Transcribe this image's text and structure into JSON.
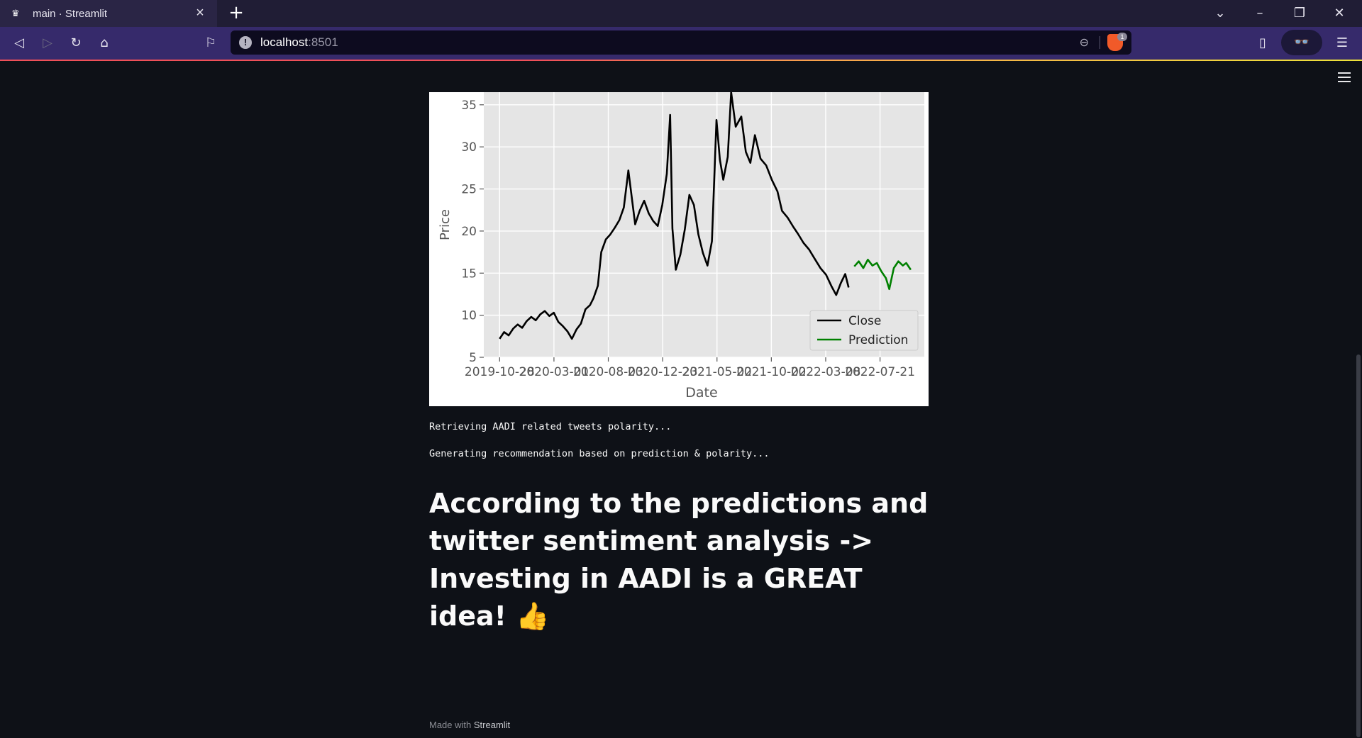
{
  "browser": {
    "tab_title": "main · Streamlit",
    "tab_icon": "streamlit-crown-icon",
    "url_host": "localhost",
    "url_port": ":8501",
    "shields_badge": "1"
  },
  "content": {
    "log_lines": [
      "Retrieving AADI related tweets polarity...",
      "Generating recommendation based on prediction & polarity..."
    ],
    "headline": "According to the predictions and twitter sentiment analysis -> Investing in AADI is a GREAT idea!",
    "headline_emoji": "👍",
    "footer_prefix": "Made with ",
    "footer_brand": "Streamlit"
  },
  "chart_data": {
    "type": "line",
    "xlabel": "Date",
    "ylabel": "Price",
    "ylim": [
      5,
      36.5
    ],
    "yticks": [
      5,
      10,
      15,
      20,
      25,
      30,
      35
    ],
    "xtick_labels": [
      "2019-10-28",
      "2020-03-01",
      "2020-08-03",
      "2020-12-23",
      "2021-05-02",
      "2021-10-02",
      "2022-03-08",
      "2022-07-21"
    ],
    "grid": true,
    "legend_position": "lower-right",
    "colors": {
      "Close": "#000000",
      "Prediction": "#008000",
      "plot_bg": "#e5e5e5"
    },
    "series": [
      {
        "name": "Close",
        "points": [
          [
            0.0,
            7.2
          ],
          [
            0.2,
            8.0
          ],
          [
            0.4,
            7.6
          ],
          [
            0.6,
            8.4
          ],
          [
            0.8,
            8.9
          ],
          [
            1.0,
            8.5
          ],
          [
            1.2,
            9.3
          ],
          [
            1.4,
            9.8
          ],
          [
            1.6,
            9.4
          ],
          [
            1.8,
            10.1
          ],
          [
            2.0,
            10.5
          ],
          [
            2.2,
            9.9
          ],
          [
            2.4,
            10.3
          ],
          [
            2.6,
            9.2
          ],
          [
            2.8,
            8.7
          ],
          [
            3.0,
            8.1
          ],
          [
            3.2,
            7.2
          ],
          [
            3.4,
            8.3
          ],
          [
            3.6,
            9.0
          ],
          [
            3.8,
            10.7
          ],
          [
            4.0,
            11.2
          ],
          [
            4.15,
            12.0
          ],
          [
            4.35,
            13.5
          ],
          [
            4.5,
            17.5
          ],
          [
            4.7,
            19.0
          ],
          [
            4.9,
            19.6
          ],
          [
            5.1,
            20.4
          ],
          [
            5.3,
            21.3
          ],
          [
            5.5,
            22.8
          ],
          [
            5.7,
            27.2
          ],
          [
            5.85,
            24.0
          ],
          [
            6.0,
            20.8
          ],
          [
            6.2,
            22.4
          ],
          [
            6.4,
            23.6
          ],
          [
            6.6,
            22.1
          ],
          [
            6.8,
            21.2
          ],
          [
            7.0,
            20.6
          ],
          [
            7.2,
            23.1
          ],
          [
            7.4,
            26.8
          ],
          [
            7.55,
            33.8
          ],
          [
            7.65,
            20.3
          ],
          [
            7.8,
            15.4
          ],
          [
            8.0,
            17.2
          ],
          [
            8.2,
            20.2
          ],
          [
            8.4,
            24.3
          ],
          [
            8.6,
            23.1
          ],
          [
            8.8,
            19.6
          ],
          [
            9.0,
            17.4
          ],
          [
            9.2,
            15.9
          ],
          [
            9.4,
            18.8
          ],
          [
            9.6,
            33.2
          ],
          [
            9.75,
            28.5
          ],
          [
            9.9,
            26.1
          ],
          [
            10.1,
            28.8
          ],
          [
            10.25,
            36.5
          ],
          [
            10.45,
            32.4
          ],
          [
            10.7,
            33.6
          ],
          [
            10.9,
            29.4
          ],
          [
            11.1,
            28.1
          ],
          [
            11.3,
            31.4
          ],
          [
            11.55,
            28.6
          ],
          [
            11.8,
            27.8
          ],
          [
            12.05,
            26.1
          ],
          [
            12.3,
            24.7
          ],
          [
            12.5,
            22.4
          ],
          [
            12.75,
            21.6
          ],
          [
            13.0,
            20.5
          ],
          [
            13.2,
            19.7
          ],
          [
            13.45,
            18.6
          ],
          [
            13.7,
            17.8
          ],
          [
            13.95,
            16.7
          ],
          [
            14.2,
            15.6
          ],
          [
            14.45,
            14.8
          ],
          [
            14.7,
            13.4
          ],
          [
            14.9,
            12.4
          ],
          [
            15.1,
            13.8
          ],
          [
            15.3,
            14.9
          ],
          [
            15.45,
            13.3
          ]
        ]
      },
      {
        "name": "Prediction",
        "points": [
          [
            15.7,
            15.8
          ],
          [
            15.9,
            16.4
          ],
          [
            16.1,
            15.6
          ],
          [
            16.3,
            16.6
          ],
          [
            16.5,
            15.9
          ],
          [
            16.7,
            16.2
          ],
          [
            16.9,
            15.2
          ],
          [
            17.1,
            14.4
          ],
          [
            17.25,
            13.1
          ],
          [
            17.45,
            15.6
          ],
          [
            17.65,
            16.4
          ],
          [
            17.85,
            15.9
          ],
          [
            18.0,
            16.2
          ],
          [
            18.2,
            15.4
          ]
        ]
      }
    ]
  }
}
